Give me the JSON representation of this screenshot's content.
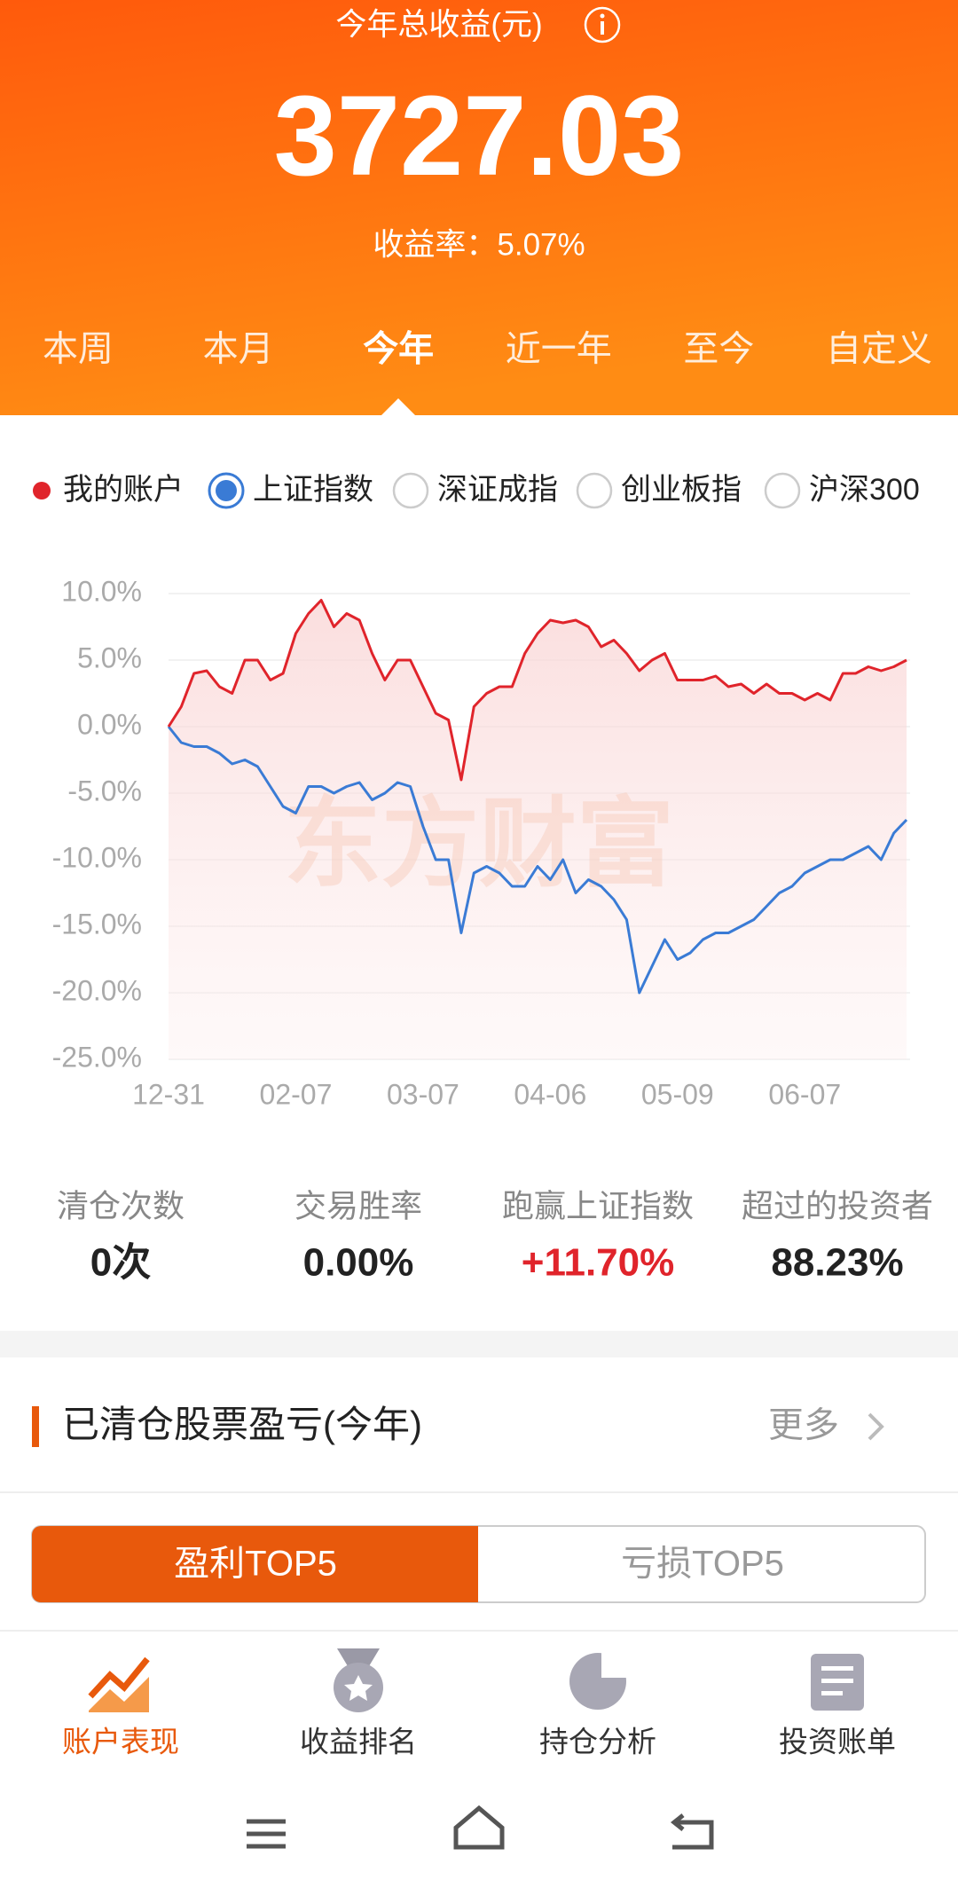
{
  "header": {
    "title": "今年总收益(元)",
    "total": "3727.03",
    "rate": "收益率：5.07%"
  },
  "tabs": [
    "本周",
    "本月",
    "今年",
    "近一年",
    "至今",
    "自定义"
  ],
  "active_tab": 2,
  "other_indices": [
    "深证成指",
    "创业板指",
    "沪深300"
  ],
  "chart_data": {
    "type": "line",
    "watermark": "东方财富",
    "x": [
      "12-31",
      null,
      null,
      null,
      null,
      null,
      null,
      null,
      null,
      null,
      "02-07",
      null,
      null,
      null,
      null,
      null,
      null,
      null,
      null,
      null,
      "03-07",
      null,
      null,
      null,
      null,
      null,
      null,
      null,
      null,
      null,
      "04-06",
      null,
      null,
      null,
      null,
      null,
      null,
      null,
      null,
      null,
      "05-09",
      null,
      null,
      null,
      null,
      null,
      null,
      null,
      null,
      null,
      "06-07",
      null,
      null,
      null,
      null,
      null,
      null,
      null,
      null
    ],
    "series": [
      {
        "name": "我的账户",
        "color": "#e0242b",
        "values": [
          0,
          1.5,
          4,
          4.2,
          3,
          2.5,
          5,
          5,
          3.5,
          4,
          7,
          8.5,
          9.5,
          7.5,
          8.5,
          8,
          5.5,
          3.5,
          5,
          5,
          3,
          1,
          0.5,
          -4,
          1.5,
          2.5,
          3,
          3,
          5.5,
          7,
          8,
          7.8,
          8,
          7.5,
          6,
          6.5,
          5.5,
          4.2,
          5,
          5.5,
          3.5,
          3.5,
          3.5,
          3.8,
          3,
          3.2,
          2.5,
          3.2,
          2.5,
          2.5,
          2,
          2.5,
          2,
          4,
          4,
          4.5,
          4.2,
          4.5,
          5
        ]
      },
      {
        "name": "上证指数",
        "color": "#3a7bd5",
        "values": [
          0,
          -1.2,
          -1.5,
          -1.5,
          -2,
          -2.8,
          -2.5,
          -3,
          -4.5,
          -6,
          -6.5,
          -4.5,
          -4.5,
          -5,
          -4.5,
          -4.2,
          -5.5,
          -5,
          -4.2,
          -4.5,
          -7.5,
          -10,
          -10,
          -15.5,
          -11,
          -10.5,
          -11,
          -12,
          -12,
          -10.5,
          -11.5,
          -10,
          -12.5,
          -11.5,
          -12,
          -13,
          -14.5,
          -20,
          -18,
          -16,
          -17.5,
          -17,
          -16,
          -15.5,
          -15.5,
          -15,
          -14.5,
          -13.5,
          -12.5,
          -12,
          -11,
          -10.5,
          -10,
          -10,
          -9.5,
          -9,
          -10,
          -8,
          -7
        ]
      }
    ],
    "ylim": [
      -25,
      10
    ],
    "yticks": [
      {
        "value": 10,
        "label": "10.0%"
      },
      {
        "value": 5,
        "label": "5.0%"
      },
      {
        "value": 0,
        "label": "0.0%"
      },
      {
        "value": -5,
        "label": "-5.0%"
      },
      {
        "value": -10,
        "label": "-10.0%"
      },
      {
        "value": -15,
        "label": "-15.0%"
      },
      {
        "value": -20,
        "label": "-20.0%"
      },
      {
        "value": -25,
        "label": "-25.0%"
      }
    ],
    "grid": true
  },
  "stats": [
    {
      "label": "清仓次数",
      "value": "0次"
    },
    {
      "label": "交易胜率",
      "value": "0.00%"
    },
    {
      "label": "跑赢上证指数",
      "value": "+11.70%"
    },
    {
      "label": "超过的投资者",
      "value": "88.23%"
    }
  ],
  "section": {
    "title": "已清仓股票盈亏(今年)",
    "more": "更多"
  },
  "toggle": [
    "盈利TOP5",
    "亏损TOP5"
  ],
  "nav": [
    "账户表现",
    "收益排名",
    "持仓分析",
    "投资账单"
  ]
}
